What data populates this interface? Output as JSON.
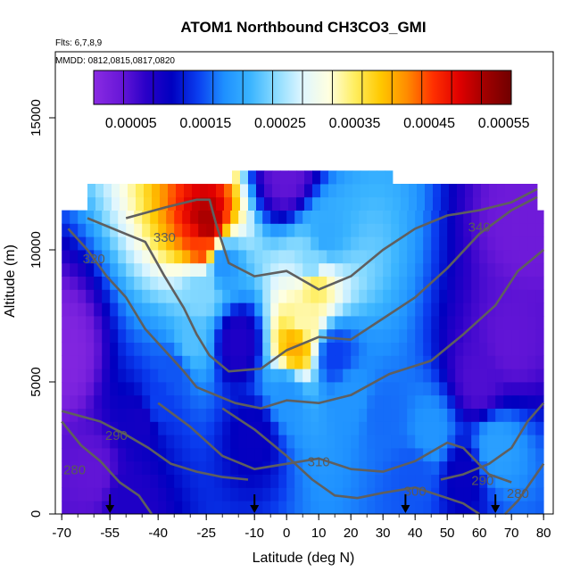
{
  "chart_data": {
    "type": "heatmap",
    "title": "ATOM1 Northbound CH3CO3_GMI",
    "flights_label": "Flts: 6,7,8,9",
    "dates_label": "MMDD: 0812,0815,0817,0820",
    "xlabel": "Latitude (deg N)",
    "ylabel": "Altitude (m)",
    "xlim": [
      -72,
      83
    ],
    "ylim": [
      0,
      17500
    ],
    "x_ticks": [
      -70,
      -55,
      -40,
      -25,
      -10,
      0,
      10,
      20,
      30,
      40,
      50,
      60,
      70,
      80
    ],
    "y_ticks": [
      0,
      5000,
      10000,
      15000
    ],
    "colorbar": {
      "min": 0.0,
      "max": 0.00056,
      "tick_values": [
        5e-05,
        0.00015,
        0.00025,
        0.00035,
        0.00045,
        0.00055
      ],
      "tick_labels": [
        "0.00005",
        "0.00015",
        "0.00025",
        "0.00035",
        "0.00045",
        "0.00055"
      ],
      "colors": [
        "#8a2be2",
        "#6a18d8",
        "#2a00c8",
        "#0000c0",
        "#0a3ef0",
        "#1e90ff",
        "#3ab4ff",
        "#8cdcff",
        "#dff6ff",
        "#ffffe0",
        "#ffee60",
        "#ffc800",
        "#ff8c00",
        "#ff3000",
        "#e00000",
        "#a00000",
        "#700000"
      ]
    },
    "altitude_bands_m": [
      [
        0,
        500
      ],
      [
        500,
        1000
      ],
      [
        1000,
        1500
      ],
      [
        1500,
        2000
      ],
      [
        2000,
        2500
      ],
      [
        2500,
        3000
      ],
      [
        3000,
        3500
      ],
      [
        3500,
        4000
      ],
      [
        4000,
        4500
      ],
      [
        4500,
        5000
      ],
      [
        5000,
        5500
      ],
      [
        5500,
        6000
      ],
      [
        6000,
        6500
      ],
      [
        6500,
        7000
      ],
      [
        7000,
        7500
      ],
      [
        7500,
        8000
      ],
      [
        8000,
        8500
      ],
      [
        8500,
        9000
      ],
      [
        9000,
        9500
      ],
      [
        9500,
        10000
      ],
      [
        10000,
        10500
      ],
      [
        10500,
        11000
      ],
      [
        11000,
        11500
      ],
      [
        11500,
        12000
      ],
      [
        12000,
        12500
      ],
      [
        12500,
        13000
      ]
    ],
    "altitude_band_lat_extent": [
      [
        -70,
        80
      ],
      [
        -70,
        80
      ],
      [
        -70,
        80
      ],
      [
        -70,
        80
      ],
      [
        -70,
        80
      ],
      [
        -70,
        80
      ],
      [
        -70,
        80
      ],
      [
        -70,
        80
      ],
      [
        -70,
        80
      ],
      [
        -70,
        80
      ],
      [
        -70,
        80
      ],
      [
        -70,
        80
      ],
      [
        -70,
        80
      ],
      [
        -70,
        80
      ],
      [
        -70,
        80
      ],
      [
        -70,
        80
      ],
      [
        -70,
        80
      ],
      [
        -70,
        80
      ],
      [
        -70,
        80
      ],
      [
        -70,
        80
      ],
      [
        -70,
        80
      ],
      [
        -70,
        80
      ],
      [
        -70,
        80
      ],
      [
        -62,
        78
      ],
      [
        -62,
        78
      ],
      [
        -17,
        33
      ]
    ],
    "value_field_note": "Colour of each cell = CH3CO3 value read from colorbar; approximate from image.",
    "samples": [
      {
        "lat": -70,
        "alt": 6000,
        "value": 1e-05
      },
      {
        "lat": -60,
        "alt": 1500,
        "value": 4e-05
      },
      {
        "lat": -50,
        "alt": 500,
        "value": 8e-05
      },
      {
        "lat": -45,
        "alt": 3500,
        "value": 9e-05
      },
      {
        "lat": -40,
        "alt": 4200,
        "value": 0.00014
      },
      {
        "lat": -35,
        "alt": 5500,
        "value": 0.00015
      },
      {
        "lat": -30,
        "alt": 6500,
        "value": 0.00022
      },
      {
        "lat": -27,
        "alt": 8500,
        "value": 0.00024
      },
      {
        "lat": -26,
        "alt": 10200,
        "value": 0.00045
      },
      {
        "lat": -25,
        "alt": 11000,
        "value": 0.00052
      },
      {
        "lat": -20,
        "alt": 9500,
        "value": 0.00018
      },
      {
        "lat": -15,
        "alt": 6500,
        "value": 8e-05
      },
      {
        "lat": -10,
        "alt": 3000,
        "value": 0.0001
      },
      {
        "lat": 0,
        "alt": 4500,
        "value": 0.00018
      },
      {
        "lat": 3,
        "alt": 6400,
        "value": 0.0004
      },
      {
        "lat": 5,
        "alt": 7200,
        "value": 0.00033
      },
      {
        "lat": 8,
        "alt": 9500,
        "value": 0.00024
      },
      {
        "lat": 9,
        "alt": 8700,
        "value": 0.00035
      },
      {
        "lat": 12,
        "alt": 10500,
        "value": 0.0002
      },
      {
        "lat": 15,
        "alt": 6000,
        "value": 0.00014
      },
      {
        "lat": 20,
        "alt": 4500,
        "value": 0.00018
      },
      {
        "lat": 30,
        "alt": 3800,
        "value": 0.00016
      },
      {
        "lat": 40,
        "alt": 1500,
        "value": 0.00015
      },
      {
        "lat": 45,
        "alt": 3000,
        "value": 0.00018
      },
      {
        "lat": 55,
        "alt": 1500,
        "value": 0.0001
      },
      {
        "lat": 60,
        "alt": 5000,
        "value": 5e-05
      },
      {
        "lat": 65,
        "alt": 2500,
        "value": 0.00019
      },
      {
        "lat": 70,
        "alt": 6500,
        "value": 4e-05
      },
      {
        "lat": 75,
        "alt": 11000,
        "value": 3e-05
      },
      {
        "lat": 0,
        "alt": 12800,
        "value": 4e-05
      }
    ],
    "isentropes": [
      {
        "label": "280",
        "label_at": {
          "lat": -66,
          "alt": 1500
        },
        "points": [
          [
            -70,
            3500
          ],
          [
            -64,
            2600
          ],
          [
            -58,
            2000
          ],
          [
            -52,
            1200
          ],
          [
            -46,
            700
          ],
          [
            -42,
            0
          ]
        ]
      },
      {
        "label": "290",
        "label_at": {
          "lat": -53,
          "alt": 2800
        },
        "points": [
          [
            -70,
            3900
          ],
          [
            -58,
            3500
          ],
          [
            -50,
            3000
          ],
          [
            -43,
            2500
          ],
          [
            -36,
            1900
          ],
          [
            -28,
            1600
          ],
          [
            -20,
            1400
          ],
          [
            -12,
            1300
          ]
        ]
      },
      {
        "label": "300",
        "label_at": {
          "lat": 40,
          "alt": 700
        },
        "points": [
          [
            -20,
            4000
          ],
          [
            -10,
            3200
          ],
          [
            0,
            2200
          ],
          [
            8,
            1300
          ],
          [
            15,
            700
          ],
          [
            22,
            600
          ],
          [
            30,
            800
          ],
          [
            40,
            1000
          ],
          [
            50,
            600
          ],
          [
            55,
            400
          ],
          [
            60,
            0
          ]
        ]
      },
      {
        "label": "310",
        "label_at": {
          "lat": 10,
          "alt": 1800
        },
        "points": [
          [
            -40,
            4200
          ],
          [
            -30,
            3300
          ],
          [
            -20,
            2200
          ],
          [
            -10,
            1700
          ],
          [
            0,
            1900
          ],
          [
            10,
            2100
          ],
          [
            20,
            1700
          ],
          [
            30,
            1600
          ],
          [
            40,
            2000
          ],
          [
            50,
            2700
          ],
          [
            55,
            2500
          ],
          [
            63,
            1500
          ],
          [
            70,
            1200
          ]
        ]
      },
      {
        "label": "290",
        "label_at": {
          "lat": 61,
          "alt": 1100
        },
        "points": [
          [
            48,
            1300
          ],
          [
            55,
            1500
          ],
          [
            63,
            1900
          ],
          [
            70,
            2500
          ],
          [
            75,
            3500
          ],
          [
            80,
            4200
          ]
        ]
      },
      {
        "label": "280",
        "label_at": {
          "lat": 72,
          "alt": 600
        },
        "points": [
          [
            68,
            0
          ],
          [
            72,
            500
          ],
          [
            76,
            1200
          ],
          [
            80,
            1900
          ]
        ]
      },
      {
        "label": "320",
        "label_at": {
          "lat": -60,
          "alt": 9500
        },
        "points": [
          [
            -68,
            10800
          ],
          [
            -62,
            10000
          ],
          [
            -56,
            9000
          ],
          [
            -50,
            8200
          ],
          [
            -44,
            7000
          ],
          [
            -38,
            6200
          ],
          [
            -32,
            5400
          ],
          [
            -28,
            4800
          ],
          [
            -22,
            4500
          ],
          [
            -16,
            4200
          ],
          [
            -8,
            4000
          ],
          [
            0,
            4300
          ],
          [
            10,
            4200
          ],
          [
            20,
            4500
          ],
          [
            32,
            5300
          ],
          [
            45,
            5800
          ],
          [
            55,
            6800
          ],
          [
            65,
            7900
          ],
          [
            72,
            9200
          ],
          [
            80,
            10000
          ]
        ]
      },
      {
        "label": "330",
        "label_at": {
          "lat": -38,
          "alt": 10300
        },
        "points": [
          [
            -62,
            11200
          ],
          [
            -52,
            10700
          ],
          [
            -44,
            10300
          ],
          [
            -38,
            9000
          ],
          [
            -32,
            7800
          ],
          [
            -28,
            6800
          ],
          [
            -24,
            6000
          ],
          [
            -18,
            5400
          ],
          [
            -8,
            5500
          ],
          [
            0,
            6200
          ],
          [
            10,
            6700
          ],
          [
            20,
            6600
          ],
          [
            30,
            7400
          ],
          [
            40,
            8200
          ],
          [
            50,
            9300
          ],
          [
            60,
            10600
          ],
          [
            70,
            11500
          ],
          [
            78,
            12000
          ]
        ]
      },
      {
        "label": "340",
        "label_at": {
          "lat": 60,
          "alt": 10700
        },
        "points": [
          [
            -50,
            11200
          ],
          [
            -38,
            11600
          ],
          [
            -28,
            11900
          ],
          [
            -24,
            11900
          ],
          [
            -22,
            11000
          ],
          [
            -18,
            9500
          ],
          [
            -10,
            9000
          ],
          [
            0,
            9200
          ],
          [
            10,
            8500
          ],
          [
            20,
            9000
          ],
          [
            30,
            10000
          ],
          [
            40,
            10800
          ],
          [
            50,
            11300
          ],
          [
            60,
            11500
          ],
          [
            70,
            11800
          ],
          [
            78,
            12300
          ]
        ]
      }
    ],
    "flight_markers_lat": [
      -55,
      -10,
      37,
      65
    ]
  }
}
